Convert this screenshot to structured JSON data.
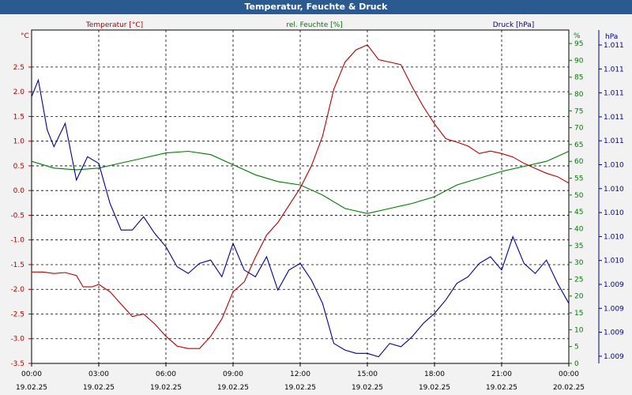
{
  "title": "Temperatur, Feuchte & Druck",
  "colors": {
    "temp": "#b30000",
    "hum": "#007a00",
    "press": "#00008b",
    "titlebar": "#2a5a8f"
  },
  "chart_data": {
    "type": "line",
    "title": "Temperatur, Feuchte & Druck",
    "x_ticks": [
      {
        "time": "00:00",
        "date": "19.02.25"
      },
      {
        "time": "03:00",
        "date": "19.02.25"
      },
      {
        "time": "06:00",
        "date": "19.02.25"
      },
      {
        "time": "09:00",
        "date": "19.02.25"
      },
      {
        "time": "12:00",
        "date": "19.02.25"
      },
      {
        "time": "15:00",
        "date": "19.02.25"
      },
      {
        "time": "18:00",
        "date": "19.02.25"
      },
      {
        "time": "21:00",
        "date": "19.02.25"
      },
      {
        "time": "00:00",
        "date": "20.02.25"
      }
    ],
    "xlim_hours": [
      0,
      24
    ],
    "grid": true,
    "axes": {
      "temp": {
        "unit": "°C",
        "ylim": [
          -3.5,
          3.25
        ],
        "ticks": [
          "2.5",
          "2.0",
          "1.5",
          "1.0",
          "0.5",
          "0.0",
          "-0.5",
          "-1.0",
          "-1.5",
          "-2.0",
          "-2.5",
          "-3.0",
          "-3.5"
        ]
      },
      "hum": {
        "unit": "%",
        "ylim": [
          0,
          99
        ],
        "ticks": [
          "95",
          "90",
          "85",
          "80",
          "75",
          "70",
          "65",
          "60",
          "55",
          "50",
          "45",
          "40",
          "35",
          "30",
          "25",
          "20",
          "15",
          "10",
          "5",
          "0"
        ]
      },
      "press": {
        "unit": "hPa",
        "ticks": [
          "1.011",
          "1.011",
          "1.011",
          "1.011",
          "1.011",
          "1.010",
          "1.010",
          "1.010",
          "1.010",
          "1.010",
          "1.009",
          "1.009",
          "1.009",
          "1.009"
        ]
      }
    },
    "series": [
      {
        "name": "Temperatur [°C]",
        "axis": "temp",
        "points": [
          [
            0,
            -1.65
          ],
          [
            0.5,
            -1.65
          ],
          [
            1,
            -1.68
          ],
          [
            1.5,
            -1.66
          ],
          [
            2,
            -1.72
          ],
          [
            2.3,
            -1.95
          ],
          [
            2.7,
            -1.95
          ],
          [
            3,
            -1.9
          ],
          [
            3.5,
            -2.05
          ],
          [
            4,
            -2.3
          ],
          [
            4.5,
            -2.55
          ],
          [
            5,
            -2.5
          ],
          [
            5.5,
            -2.7
          ],
          [
            6,
            -2.95
          ],
          [
            6.5,
            -3.15
          ],
          [
            7,
            -3.2
          ],
          [
            7.5,
            -3.2
          ],
          [
            8,
            -2.95
          ],
          [
            8.5,
            -2.6
          ],
          [
            9,
            -2.05
          ],
          [
            9.5,
            -1.85
          ],
          [
            10,
            -1.35
          ],
          [
            10.5,
            -0.9
          ],
          [
            11,
            -0.65
          ],
          [
            11.5,
            -0.3
          ],
          [
            12,
            0.05
          ],
          [
            12.5,
            0.5
          ],
          [
            13,
            1.1
          ],
          [
            13.5,
            2.05
          ],
          [
            14,
            2.6
          ],
          [
            14.5,
            2.85
          ],
          [
            15,
            2.95
          ],
          [
            15.5,
            2.65
          ],
          [
            16,
            2.6
          ],
          [
            16.5,
            2.55
          ],
          [
            17,
            2.1
          ],
          [
            17.5,
            1.7
          ],
          [
            18,
            1.35
          ],
          [
            18.5,
            1.05
          ],
          [
            19,
            0.98
          ],
          [
            19.5,
            0.9
          ],
          [
            20,
            0.75
          ],
          [
            20.5,
            0.8
          ],
          [
            21,
            0.75
          ],
          [
            21.5,
            0.68
          ],
          [
            22,
            0.55
          ],
          [
            22.5,
            0.45
          ],
          [
            23,
            0.35
          ],
          [
            23.5,
            0.28
          ],
          [
            24,
            0.15
          ]
        ]
      },
      {
        "name": "rel. Feuchte [%]",
        "axis": "hum",
        "points": [
          [
            0,
            60
          ],
          [
            1,
            58
          ],
          [
            2,
            57.5
          ],
          [
            3,
            58
          ],
          [
            4,
            59.5
          ],
          [
            5,
            61
          ],
          [
            6,
            62.5
          ],
          [
            7,
            63
          ],
          [
            8,
            62
          ],
          [
            9,
            59
          ],
          [
            10,
            56
          ],
          [
            11,
            54
          ],
          [
            12,
            53
          ],
          [
            13,
            50
          ],
          [
            14,
            46
          ],
          [
            15,
            44.5
          ],
          [
            16,
            46
          ],
          [
            17,
            47.5
          ],
          [
            18,
            49.5
          ],
          [
            19,
            53
          ],
          [
            20,
            55
          ],
          [
            21,
            57
          ],
          [
            22,
            58.5
          ],
          [
            23,
            60
          ],
          [
            24,
            63
          ]
        ]
      },
      {
        "name": "Druck [hPa]",
        "axis": "press",
        "points": [
          [
            0,
            80
          ],
          [
            0.3,
            85
          ],
          [
            0.7,
            70
          ],
          [
            1,
            65
          ],
          [
            1.5,
            72
          ],
          [
            2,
            55
          ],
          [
            2.5,
            62
          ],
          [
            3,
            60
          ],
          [
            3.5,
            48
          ],
          [
            4,
            40
          ],
          [
            4.5,
            40
          ],
          [
            5,
            44
          ],
          [
            5.5,
            39
          ],
          [
            6,
            35
          ],
          [
            6.5,
            29
          ],
          [
            7,
            27
          ],
          [
            7.5,
            30
          ],
          [
            8,
            31
          ],
          [
            8.5,
            26
          ],
          [
            9,
            36
          ],
          [
            9.5,
            28
          ],
          [
            10,
            26
          ],
          [
            10.5,
            32
          ],
          [
            11,
            22
          ],
          [
            11.5,
            28
          ],
          [
            12,
            30
          ],
          [
            12.5,
            25
          ],
          [
            13,
            18
          ],
          [
            13.5,
            6
          ],
          [
            14,
            4
          ],
          [
            14.5,
            3
          ],
          [
            15,
            3
          ],
          [
            15.5,
            2
          ],
          [
            16,
            6
          ],
          [
            16.5,
            5
          ],
          [
            17,
            8
          ],
          [
            17.5,
            12
          ],
          [
            18,
            15
          ],
          [
            18.5,
            19
          ],
          [
            19,
            24
          ],
          [
            19.5,
            26
          ],
          [
            20,
            30
          ],
          [
            20.5,
            32
          ],
          [
            21,
            28
          ],
          [
            21.5,
            38
          ],
          [
            22,
            30
          ],
          [
            22.5,
            27
          ],
          [
            23,
            31
          ],
          [
            23.5,
            24
          ],
          [
            24,
            18
          ]
        ]
      }
    ]
  }
}
